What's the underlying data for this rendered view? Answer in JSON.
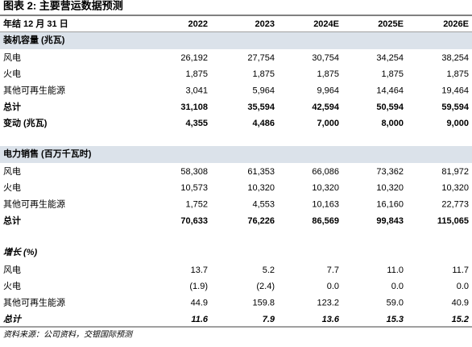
{
  "header": {
    "title": "图表 2: 主要营运数据预测",
    "label": "年结 12 月 31 日",
    "columns": [
      "2022",
      "2023",
      "2024E",
      "2025E",
      "2026E"
    ]
  },
  "sections": [
    {
      "title": "装机容量 (兆瓦)",
      "rows": [
        {
          "label": "风电",
          "values": [
            "26,192",
            "27,754",
            "30,754",
            "34,254",
            "38,254"
          ]
        },
        {
          "label": "火电",
          "values": [
            "1,875",
            "1,875",
            "1,875",
            "1,875",
            "1,875"
          ]
        },
        {
          "label": "其他可再生能源",
          "values": [
            "3,041",
            "5,964",
            "9,964",
            "14,464",
            "19,464"
          ]
        },
        {
          "label": "总计",
          "values": [
            "31,108",
            "35,594",
            "42,594",
            "50,594",
            "59,594"
          ]
        },
        {
          "label": "变动 (兆瓦)",
          "values": [
            "4,355",
            "4,486",
            "7,000",
            "8,000",
            "9,000"
          ]
        }
      ]
    },
    {
      "title": "电力销售 (百万千瓦时)",
      "rows": [
        {
          "label": "风电",
          "values": [
            "58,308",
            "61,353",
            "66,086",
            "73,362",
            "81,972"
          ]
        },
        {
          "label": "火电",
          "values": [
            "10,573",
            "10,320",
            "10,320",
            "10,320",
            "10,320"
          ]
        },
        {
          "label": "其他可再生能源",
          "values": [
            "1,752",
            "4,553",
            "10,163",
            "16,160",
            "22,773"
          ]
        },
        {
          "label": "总计",
          "values": [
            "70,633",
            "76,226",
            "86,569",
            "99,843",
            "115,065"
          ]
        }
      ]
    },
    {
      "title": "增长 (%)",
      "rows": [
        {
          "label": "风电",
          "values": [
            "13.7",
            "5.2",
            "7.7",
            "11.0",
            "11.7"
          ]
        },
        {
          "label": "火电",
          "values": [
            "(1.9)",
            "(2.4)",
            "0.0",
            "0.0",
            "0.0"
          ]
        },
        {
          "label": "其他可再生能源",
          "values": [
            "44.9",
            "159.8",
            "123.2",
            "59.0",
            "40.9"
          ]
        },
        {
          "label": "总计",
          "values": [
            "11.6",
            "7.9",
            "13.6",
            "15.3",
            "15.2"
          ]
        }
      ]
    }
  ],
  "source": "资料来源：公司资料，交银国际预测"
}
